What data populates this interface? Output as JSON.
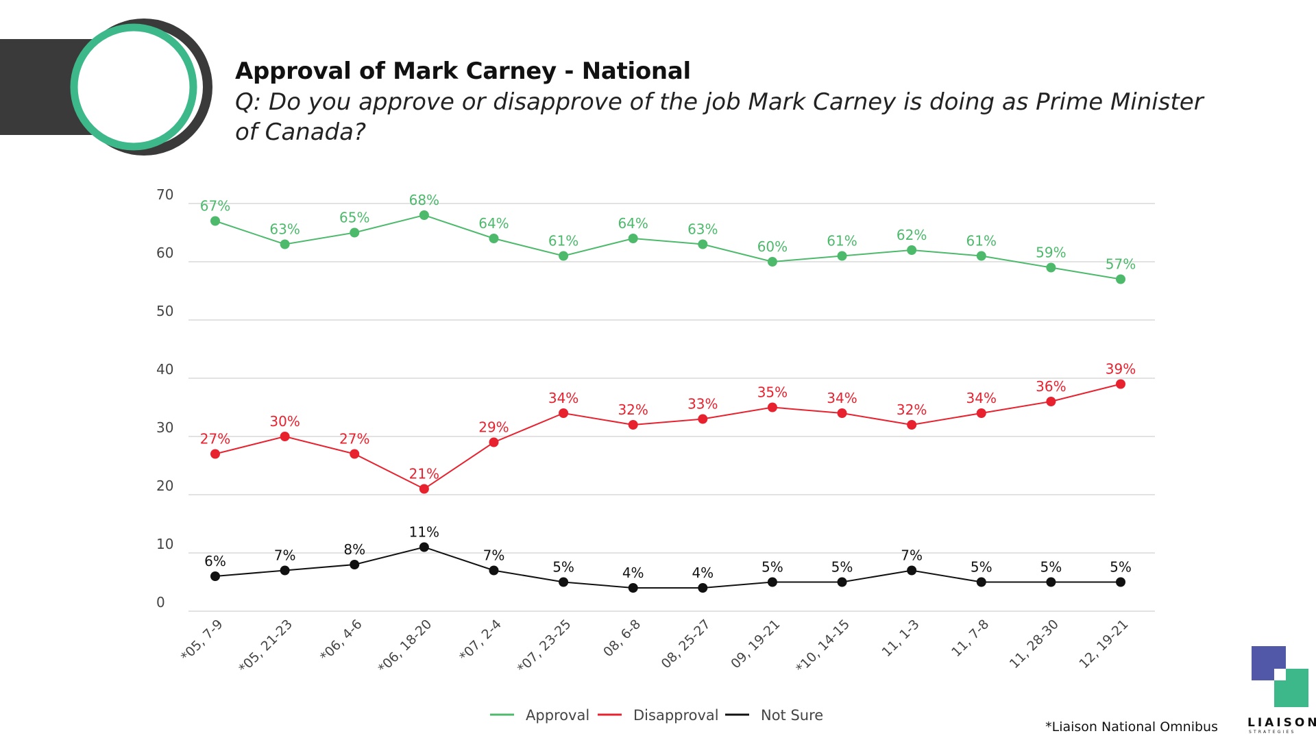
{
  "header": {
    "title": "Approval of Mark Carney - National",
    "subtitle": "Q: Do you approve or disapprove of the job Mark Carney is doing as Prime Minister of Canada?"
  },
  "footnote": "*Liaison National Omnibus",
  "logo": {
    "word": "LIAISON",
    "sub": "STRATEGIES"
  },
  "colors": {
    "approval": "#4CB96B",
    "disapproval": "#E8212E",
    "not_sure": "#111111",
    "brand_green": "#3DB88A",
    "brand_dark": "#3A3A3A",
    "brand_purple": "#5158A8"
  },
  "chart_data": {
    "type": "line",
    "title": "",
    "xlabel": "",
    "ylabel": "",
    "ylim": [
      0,
      70
    ],
    "yticks": [
      0,
      10,
      20,
      30,
      40,
      50,
      60,
      70
    ],
    "grid": true,
    "legend_position": "bottom-center",
    "categories": [
      "*05, 7-9",
      "*05, 21-23",
      "*06, 4-6",
      "*06, 18-20",
      "*07, 2-4",
      "*07, 23-25",
      "08, 6-8",
      "08, 25-27",
      "09, 19-21",
      "*10, 14-15",
      "11, 1-3",
      "11, 7-8",
      "11, 28-30",
      "12, 19-21"
    ],
    "series": [
      {
        "name": "Approval",
        "color": "#4CB96B",
        "values": [
          67,
          63,
          65,
          68,
          64,
          61,
          64,
          63,
          60,
          61,
          62,
          61,
          59,
          57
        ]
      },
      {
        "name": "Disapproval",
        "color": "#E8212E",
        "values": [
          27,
          30,
          27,
          21,
          29,
          34,
          32,
          33,
          35,
          34,
          32,
          34,
          36,
          39
        ]
      },
      {
        "name": "Not Sure",
        "color": "#111111",
        "values": [
          6,
          7,
          8,
          11,
          7,
          5,
          4,
          4,
          5,
          5,
          7,
          5,
          5,
          5
        ]
      }
    ],
    "label_suffix": "%"
  }
}
